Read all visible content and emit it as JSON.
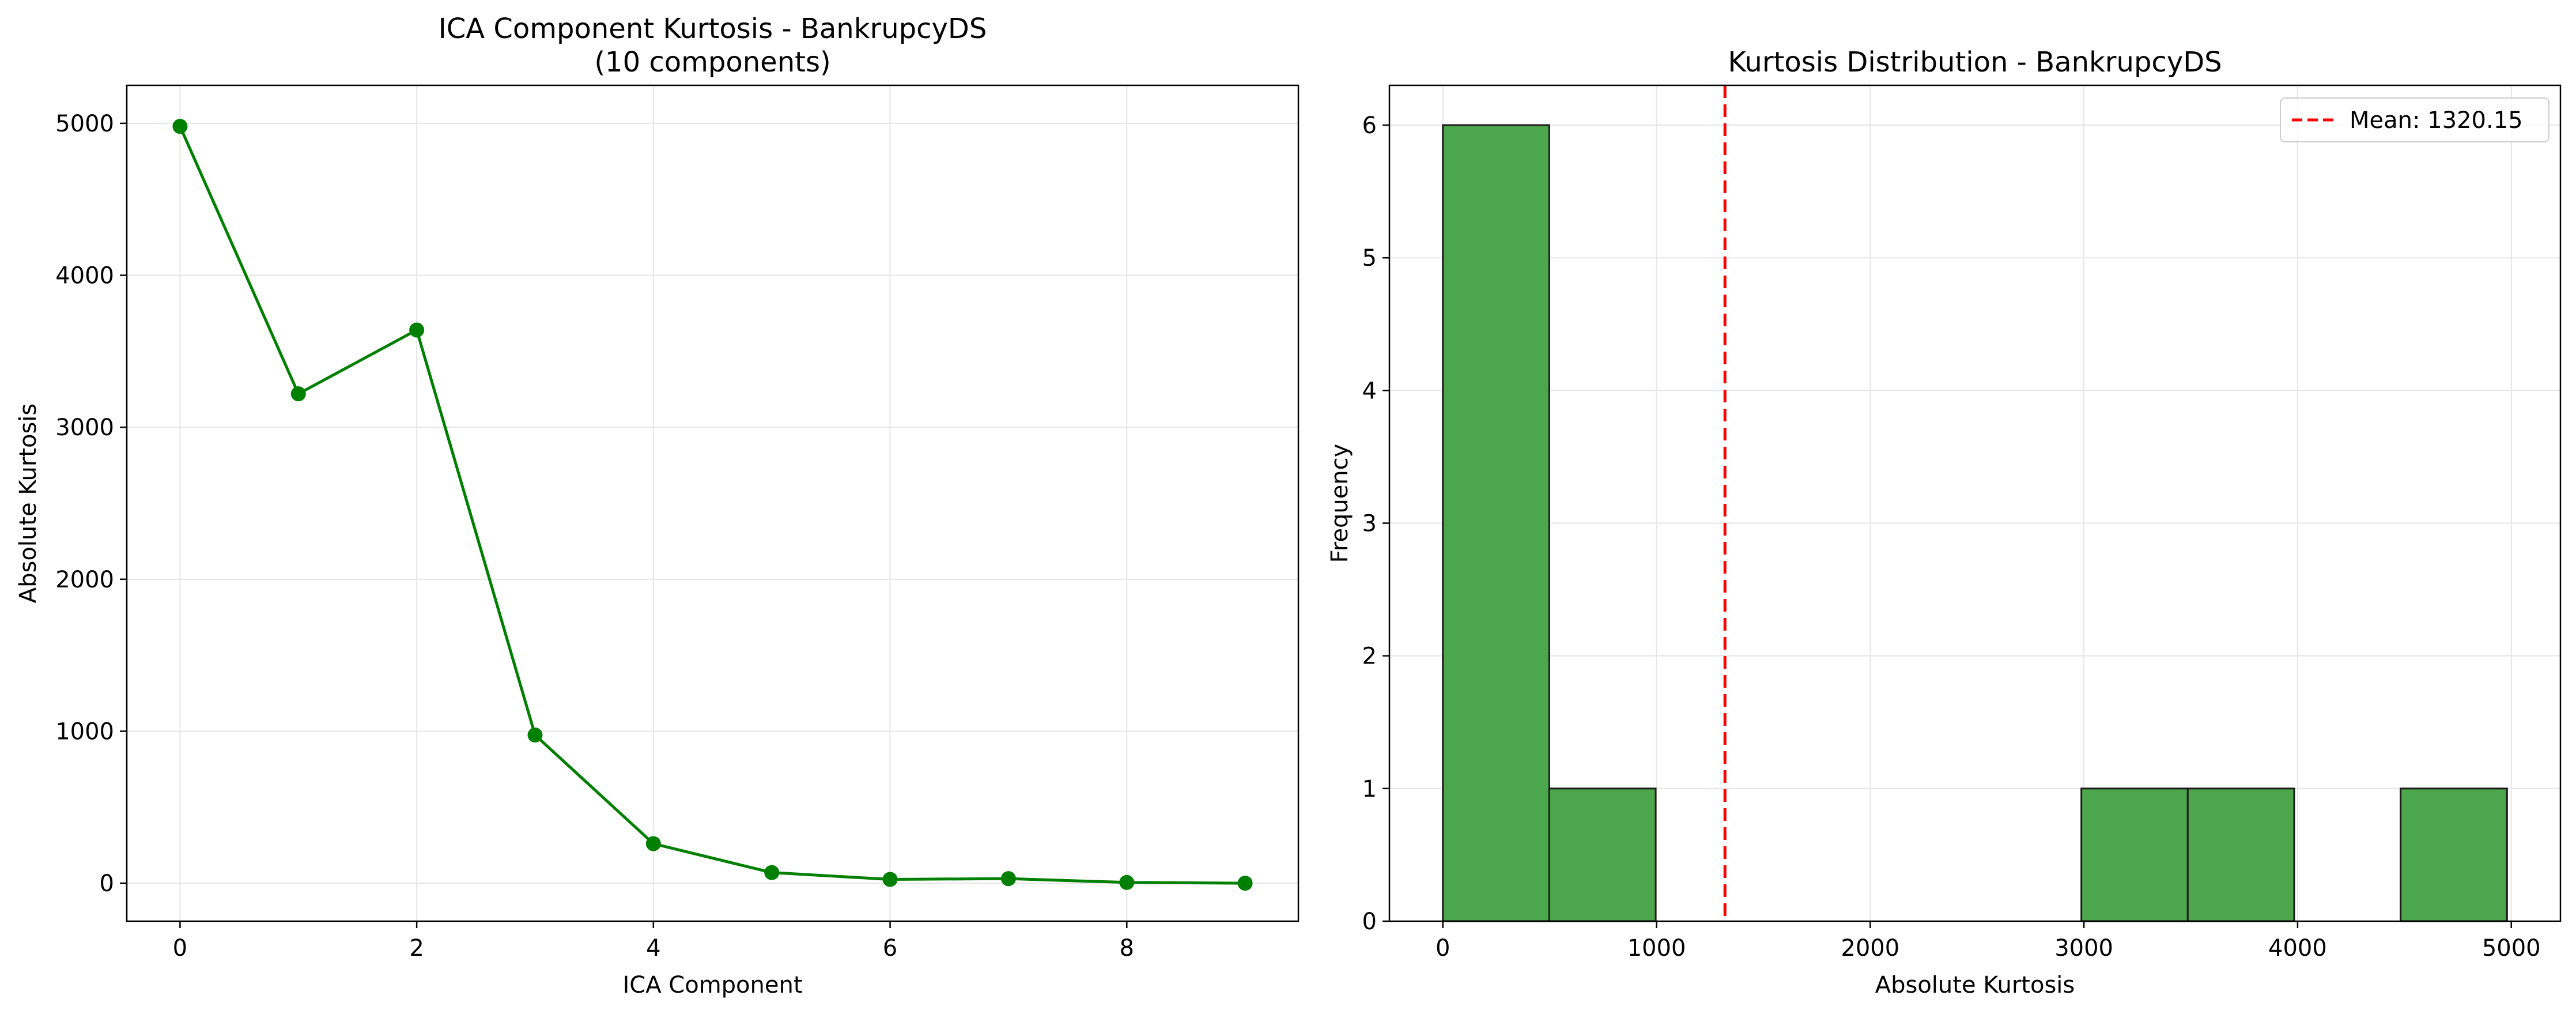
{
  "colors": {
    "line": "#008000",
    "bar_fill": "#4ca64c",
    "bar_edge": "#1a1a1a",
    "mean_line": "#ff0000",
    "grid": "#e5e5e5",
    "axes": "#000000"
  },
  "chart_data": [
    {
      "type": "line",
      "title_line1": "ICA Component Kurtosis - BankrupcyDS",
      "title_line2": "(10 components)",
      "xlabel": "ICA Component",
      "ylabel": "Absolute Kurtosis",
      "xlim": [
        -0.45,
        9.45
      ],
      "ylim": [
        -250,
        5250
      ],
      "xticks": [
        0,
        2,
        4,
        6,
        8
      ],
      "yticks": [
        0,
        1000,
        2000,
        3000,
        4000,
        5000
      ],
      "grid": true,
      "marker": "circle",
      "x": [
        0,
        1,
        2,
        3,
        4,
        5,
        6,
        7,
        8,
        9
      ],
      "y": [
        4980,
        3220,
        3640,
        975,
        260,
        70,
        25,
        30,
        5,
        0
      ]
    },
    {
      "type": "bar",
      "subtype": "histogram",
      "title": "Kurtosis Distribution - BankrupcyDS",
      "xlabel": "Absolute Kurtosis",
      "ylabel": "Frequency",
      "xlim": [
        -250,
        5230
      ],
      "ylim": [
        0,
        6.3
      ],
      "xticks": [
        0,
        1000,
        2000,
        3000,
        4000,
        5000
      ],
      "yticks": [
        0,
        1,
        2,
        3,
        4,
        5,
        6
      ],
      "grid": true,
      "bin_edges": [
        0,
        498,
        996,
        1494,
        1992,
        2490,
        2988,
        3486,
        3984,
        4482,
        4980
      ],
      "counts": [
        6,
        1,
        0,
        0,
        0,
        0,
        1,
        1,
        0,
        1
      ],
      "mean": 1320.15,
      "legend": {
        "label": "Mean: 1320.15",
        "placement": "top-right"
      }
    }
  ]
}
